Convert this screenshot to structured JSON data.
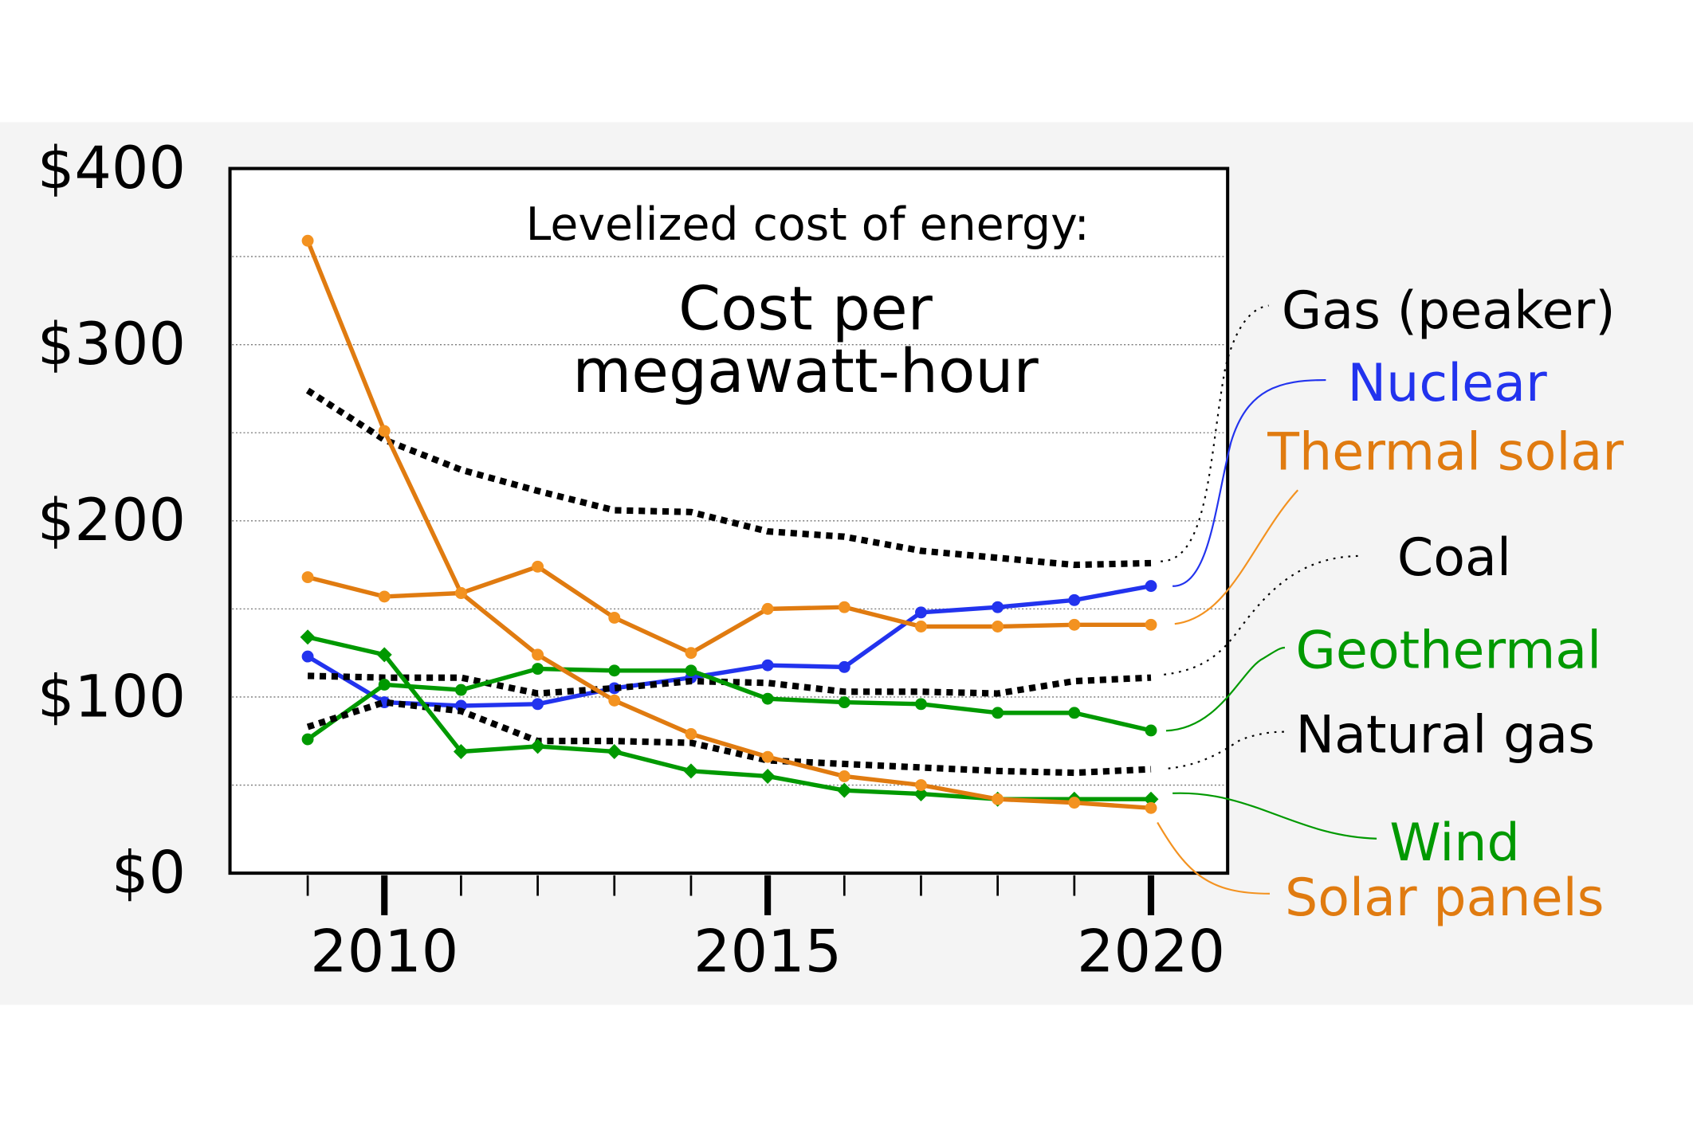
{
  "chart_data": {
    "type": "line",
    "title": "Levelized cost of energy:",
    "subtitle_line1": "Cost per",
    "subtitle_line2": "megawatt-hour",
    "xlabel": "",
    "ylabel": "",
    "xlim": [
      2008,
      2021
    ],
    "ylim": [
      0,
      400
    ],
    "grid": true,
    "legend": "right (inline labels with leader lines)",
    "y_ticks": [
      {
        "value": 0,
        "label": "$0"
      },
      {
        "value": 100,
        "label": "$100"
      },
      {
        "value": 200,
        "label": "$200"
      },
      {
        "value": 300,
        "label": "$300"
      },
      {
        "value": 400,
        "label": "$400"
      }
    ],
    "x_ticks": [
      {
        "value": 2010,
        "label": "2010"
      },
      {
        "value": 2015,
        "label": "2015"
      },
      {
        "value": 2020,
        "label": "2020"
      }
    ],
    "x": [
      2009,
      2010,
      2011,
      2012,
      2013,
      2014,
      2015,
      2016,
      2017,
      2018,
      2019,
      2020
    ],
    "series": [
      {
        "name": "Gas (peaker)",
        "color": "#000000",
        "style": "dotted",
        "marker": "none",
        "values": [
          274,
          246,
          229,
          217,
          206,
          205,
          194,
          191,
          183,
          179,
          175,
          176
        ]
      },
      {
        "name": "Nuclear",
        "color": "#2233ee",
        "style": "solid",
        "marker": "circle",
        "values": [
          123,
          97,
          95,
          96,
          105,
          111,
          118,
          117,
          148,
          151,
          155,
          163
        ]
      },
      {
        "name": "Thermal solar",
        "color": "#e07b10",
        "style": "solid",
        "marker": "circle",
        "values": [
          168,
          157,
          159,
          174,
          145,
          125,
          150,
          151,
          140,
          140,
          141,
          141
        ]
      },
      {
        "name": "Coal",
        "color": "#000000",
        "style": "dotted",
        "marker": "none",
        "values": [
          112,
          111,
          111,
          102,
          105,
          109,
          108,
          103,
          103,
          102,
          109,
          111
        ]
      },
      {
        "name": "Geothermal",
        "color": "#009900",
        "style": "solid",
        "marker": "circle",
        "values": [
          76,
          107,
          104,
          116,
          115,
          115,
          99,
          97,
          96,
          91,
          91,
          81
        ]
      },
      {
        "name": "Natural gas",
        "color": "#000000",
        "style": "dotted",
        "marker": "none",
        "values": [
          83,
          97,
          92,
          75,
          75,
          74,
          64,
          62,
          60,
          58,
          57,
          59
        ]
      },
      {
        "name": "Wind",
        "color": "#009900",
        "style": "solid",
        "marker": "diamond",
        "values": [
          134,
          124,
          69,
          72,
          69,
          58,
          55,
          47,
          45,
          42,
          42,
          42
        ]
      },
      {
        "name": "Solar panels",
        "color": "#e07b10",
        "style": "solid",
        "marker": "circle",
        "values": [
          359,
          251,
          159,
          124,
          98,
          79,
          66,
          55,
          50,
          42,
          40,
          37
        ]
      }
    ]
  }
}
